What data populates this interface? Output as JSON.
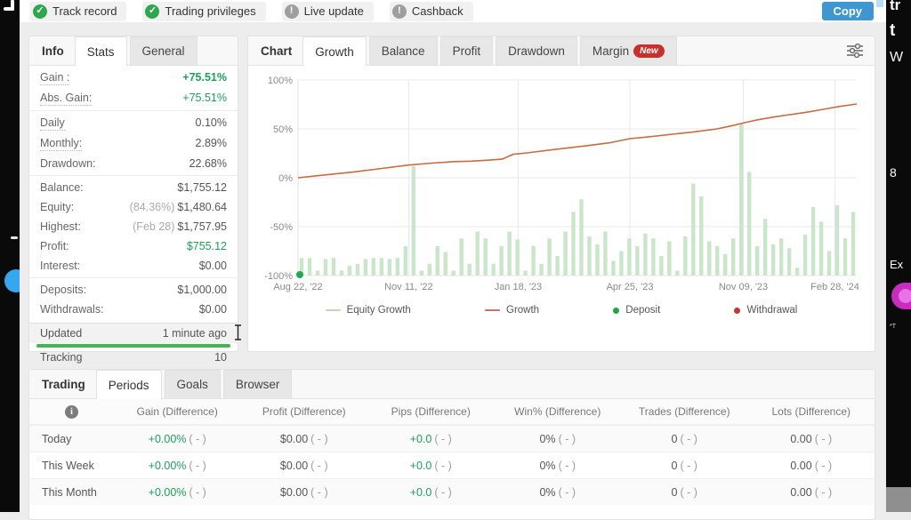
{
  "colors": {
    "accent_green": "#1ba158",
    "accent_blue": "#3e96d2",
    "bar_green": "#c9e6ca",
    "line_orange": "#c96a42",
    "deposit_green": "#1faa4e",
    "withdrawal_red": "#c6362e",
    "badge_check_green": "#2da84f",
    "badge_info_gray": "#9e9e9e",
    "new_badge_red": "#c9302c",
    "magenta_pill": "#c92dbf",
    "blue_circle": "#35a7f0"
  },
  "header": {
    "badges": [
      {
        "label": "Track record",
        "status": "ok"
      },
      {
        "label": "Trading privileges",
        "status": "ok"
      },
      {
        "label": "Live update",
        "status": "info"
      },
      {
        "label": "Cashback",
        "status": "info"
      }
    ],
    "copy_button": "Copy"
  },
  "info_panel": {
    "tabs": [
      {
        "label": "Info",
        "style": "title"
      },
      {
        "label": "Stats",
        "style": "active"
      },
      {
        "label": "General",
        "style": "default"
      }
    ],
    "groups": [
      {
        "rows": [
          {
            "label": "Gain :",
            "value": "+75.51%",
            "value_style": "green-bold",
            "dotted": true
          },
          {
            "label": "Abs. Gain:",
            "value": "+75.51%",
            "value_style": "green",
            "dotted": true
          }
        ]
      },
      {
        "rows": [
          {
            "label": "Daily",
            "value": "0.10%",
            "dotted": true
          },
          {
            "label": "Monthly:",
            "value": "2.89%",
            "dotted": true
          },
          {
            "label": "Drawdown:",
            "value": "22.68%"
          }
        ]
      },
      {
        "rows": [
          {
            "label": "Balance:",
            "value": "$1,755.12"
          },
          {
            "label": "Equity:",
            "prefix": "(84.36%)",
            "value": "$1,480.64"
          },
          {
            "label": "Highest:",
            "prefix": "(Feb 28)",
            "value": "$1,757.95"
          },
          {
            "label": "Profit:",
            "value": "$755.12",
            "value_style": "green"
          },
          {
            "label": "Interest:",
            "value": "$0.00"
          }
        ]
      },
      {
        "rows": [
          {
            "label": "Deposits:",
            "value": "$1,000.00"
          },
          {
            "label": "Withdrawals:",
            "value": "$0.00"
          }
        ]
      }
    ],
    "updated_label": "Updated",
    "updated_value": "1 minute ago",
    "tracking_label": "Tracking",
    "tracking_value": "10"
  },
  "chart_panel": {
    "title_tab": "Chart",
    "tabs": [
      {
        "label": "Growth",
        "active": true
      },
      {
        "label": "Balance"
      },
      {
        "label": "Profit"
      },
      {
        "label": "Drawdown"
      },
      {
        "label": "Margin",
        "badge": "New"
      }
    ],
    "legend": [
      {
        "label": "Equity Growth",
        "swatch": "line",
        "color": "#d8cdb4"
      },
      {
        "label": "Growth",
        "swatch": "line",
        "color": "#c5766b"
      },
      {
        "label": "Deposit",
        "swatch": "dot",
        "color": "#21a445"
      },
      {
        "label": "Withdrawal",
        "swatch": "dot",
        "color": "#c6362e"
      }
    ]
  },
  "chart_data": {
    "type": "mixed-bar-line",
    "title": "Growth",
    "y_ticks": [
      "100%",
      "50%",
      "0%",
      "-50%",
      "-100%"
    ],
    "y_tick_values": [
      100,
      50,
      0,
      -50,
      -100
    ],
    "y_range": [
      -100,
      100
    ],
    "grid": true,
    "legend_position": "bottom",
    "x_ticks": [
      {
        "label": "Aug 22, '22",
        "pos": 0.0
      },
      {
        "label": "Nov 11, '22",
        "pos": 0.198
      },
      {
        "label": "Jan 18, '23",
        "pos": 0.394
      },
      {
        "label": "Apr 25, '23",
        "pos": 0.594
      },
      {
        "label": "Nov 09, '23",
        "pos": 0.797
      },
      {
        "label": "Feb 28, '24",
        "pos": 0.961
      }
    ],
    "series": [
      {
        "name": "Equity Growth",
        "type": "bar",
        "color": "#c9e6ca",
        "baseline": -100,
        "values": [
          -82,
          -82,
          -95,
          -83,
          -82,
          -95,
          -90,
          -88,
          -83,
          -82,
          -82,
          -83,
          -82,
          -70,
          12,
          -95,
          -88,
          -70,
          -76,
          -95,
          -62,
          -88,
          -55,
          -62,
          -88,
          -70,
          -55,
          -63,
          -95,
          -70,
          -88,
          -62,
          -80,
          -55,
          -35,
          -22,
          -60,
          -68,
          -55,
          -85,
          -75,
          -62,
          -70,
          -57,
          -62,
          -80,
          -65,
          -95,
          -60,
          -6,
          -19,
          -65,
          -70,
          -78,
          -62,
          55,
          6,
          -70,
          -42,
          -68,
          -62,
          -72,
          -92,
          -58,
          -30,
          -45,
          -75,
          -28,
          -62,
          -35
        ]
      },
      {
        "name": "Growth",
        "type": "line",
        "color": "#c96a42",
        "points": [
          [
            0,
            0
          ],
          [
            0.05,
            3
          ],
          [
            0.1,
            6
          ],
          [
            0.15,
            9.5
          ],
          [
            0.198,
            13
          ],
          [
            0.24,
            15
          ],
          [
            0.28,
            16.5
          ],
          [
            0.31,
            17
          ],
          [
            0.34,
            18
          ],
          [
            0.365,
            19
          ],
          [
            0.385,
            24
          ],
          [
            0.41,
            25.5
          ],
          [
            0.46,
            29
          ],
          [
            0.52,
            33
          ],
          [
            0.56,
            36
          ],
          [
            0.594,
            40
          ],
          [
            0.63,
            42
          ],
          [
            0.67,
            44.5
          ],
          [
            0.71,
            47
          ],
          [
            0.75,
            50
          ],
          [
            0.775,
            53
          ],
          [
            0.797,
            56
          ],
          [
            0.82,
            59
          ],
          [
            0.85,
            62
          ],
          [
            0.88,
            64.5
          ],
          [
            0.91,
            67
          ],
          [
            0.94,
            70
          ],
          [
            0.97,
            73
          ],
          [
            1,
            75.5
          ]
        ]
      },
      {
        "name": "Deposit",
        "type": "marker",
        "color": "#1faa4e",
        "points": [
          [
            0,
            -100
          ]
        ]
      }
    ]
  },
  "bottom_panel": {
    "tabs": [
      {
        "label": "Trading",
        "style": "title"
      },
      {
        "label": "Periods",
        "style": "active"
      },
      {
        "label": "Goals",
        "style": "default"
      },
      {
        "label": "Browser",
        "style": "default"
      }
    ],
    "table": {
      "columns": [
        "Gain (Difference)",
        "Profit (Difference)",
        "Pips (Difference)",
        "Win% (Difference)",
        "Trades (Difference)",
        "Lots (Difference)"
      ],
      "rows": [
        {
          "label": "Today",
          "cells": [
            {
              "value": "+0.00%",
              "diff": "( - )",
              "green": true
            },
            {
              "value": "$0.00",
              "diff": "( - )",
              "green": false
            },
            {
              "value": "+0.0",
              "diff": "( - )",
              "green": true
            },
            {
              "value": "0%",
              "diff": "( - )",
              "green": false
            },
            {
              "value": "0",
              "diff": "( - )",
              "green": false
            },
            {
              "value": "0.00",
              "diff": "( - )",
              "green": false
            }
          ]
        },
        {
          "label": "This Week",
          "cells": [
            {
              "value": "+0.00%",
              "diff": "( - )",
              "green": true
            },
            {
              "value": "$0.00",
              "diff": "( - )",
              "green": false
            },
            {
              "value": "+0.0",
              "diff": "( - )",
              "green": true
            },
            {
              "value": "0%",
              "diff": "( - )",
              "green": false
            },
            {
              "value": "0",
              "diff": "( - )",
              "green": false
            },
            {
              "value": "0.00",
              "diff": "( - )",
              "green": false
            }
          ]
        },
        {
          "label": "This Month",
          "cells": [
            {
              "value": "+0.00%",
              "diff": "( - )",
              "green": true
            },
            {
              "value": "$0.00",
              "diff": "( - )",
              "green": false
            },
            {
              "value": "+0.0",
              "diff": "( - )",
              "green": true
            },
            {
              "value": "0%",
              "diff": "( - )",
              "green": false
            },
            {
              "value": "0",
              "diff": "( - )",
              "green": false
            },
            {
              "value": "0.00",
              "diff": "( - )",
              "green": false
            }
          ]
        }
      ]
    }
  },
  "side_strips": {
    "right_fragments": [
      "tr",
      "t",
      "W",
      "8",
      "Ex",
      "*T"
    ]
  }
}
